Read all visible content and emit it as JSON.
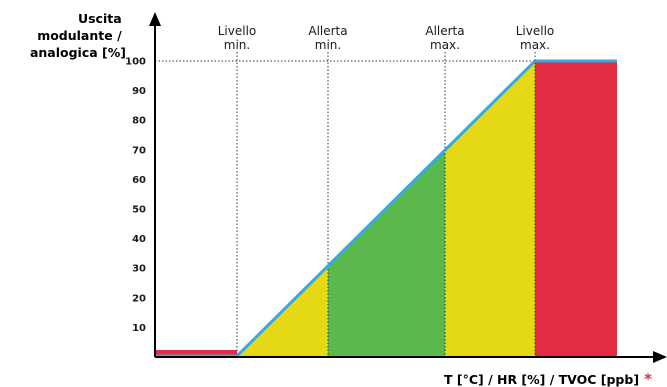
{
  "chart_data": {
    "type": "area",
    "ylabel_lines": [
      "Uscita",
      "modulante /",
      "analogica [%]"
    ],
    "xlabel": "T [°C] / HR [%] / TVOC [ppb]",
    "xlabel_asterisk": "*",
    "yticks": [
      10,
      20,
      30,
      40,
      50,
      60,
      70,
      80,
      90,
      100
    ],
    "ylim": [
      0,
      100
    ],
    "grid": false,
    "thresholds": [
      {
        "lines": [
          "Livello",
          "min."
        ],
        "output": 0
      },
      {
        "lines": [
          "Allerta",
          "min."
        ],
        "output": 31
      },
      {
        "lines": [
          "Allerta",
          "max."
        ],
        "output": 70
      },
      {
        "lines": [
          "Livello",
          "max."
        ],
        "output": 100
      }
    ],
    "zones": [
      {
        "band": "below-min",
        "color": "#e32d45"
      },
      {
        "band": "min-to-alert",
        "color": "#e4d914"
      },
      {
        "band": "alert-range",
        "color": "#5ab84c"
      },
      {
        "band": "alert-to-max",
        "color": "#e4d914"
      },
      {
        "band": "above-max",
        "color": "#e32d45"
      }
    ],
    "line_color": "#36a9e1",
    "asterisk_color": "#e32d45"
  }
}
